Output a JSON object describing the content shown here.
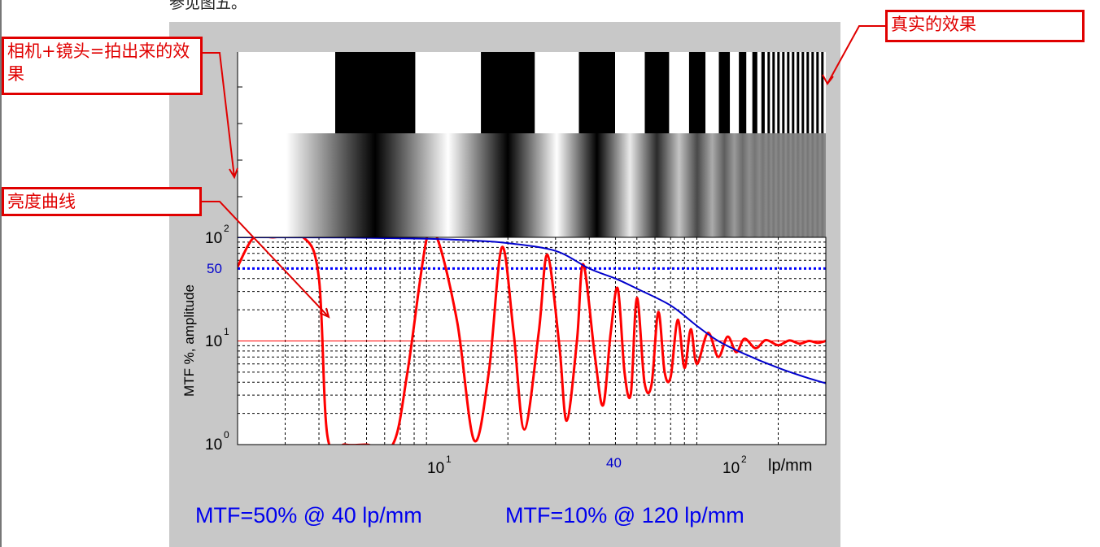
{
  "page": {
    "top_text": "参见图五。"
  },
  "callouts": {
    "real_effect": "真实的效果",
    "camera_lens": "相机+镜头=拍出来的效果",
    "brightness_curve": "亮度曲线"
  },
  "summary": {
    "mtf50": "MTF=50% @ 40 lp/mm",
    "mtf10": "MTF=10% @ 120 lp/mm"
  },
  "chart_data": {
    "type": "line",
    "x_scale": "log",
    "y_scale": "log",
    "xlim": [
      2,
      300
    ],
    "ylim": [
      1,
      100
    ],
    "ylabel": "MTF %, amplitude",
    "xlabel": "lp/mm",
    "x_ticks": [
      {
        "value": 10,
        "base": "10",
        "exp": "1"
      },
      {
        "value": 100,
        "base": "10",
        "exp": "2"
      }
    ],
    "y_ticks": [
      {
        "value": 1,
        "base": "10",
        "exp": "0"
      },
      {
        "value": 10,
        "base": "10",
        "exp": "1"
      },
      {
        "value": 100,
        "base": "10",
        "exp": "2"
      }
    ],
    "marker_labels": {
      "x": "40",
      "y": "50"
    },
    "reference_lines": [
      {
        "axis": "y",
        "value": 50,
        "style": "dotted",
        "color": "#0000ff"
      },
      {
        "axis": "y",
        "value": 10,
        "style": "solid",
        "color": "#ff0000"
      }
    ],
    "grid": true,
    "series": [
      {
        "color": "#0000cc",
        "x": [
          2,
          5,
          10,
          15,
          20,
          30,
          40,
          50,
          60,
          80,
          100,
          120,
          150,
          200,
          250,
          300
        ],
        "y": [
          100,
          99.5,
          97,
          93,
          88,
          74,
          50,
          40,
          32,
          22,
          14,
          10,
          7.5,
          5.5,
          4.5,
          3.9
        ]
      },
      {
        "color": "#ff0000",
        "x": [
          2,
          2.3,
          2.7,
          3.5,
          4,
          4.3,
          5,
          6,
          7.5,
          8.5,
          10,
          11,
          13,
          15,
          17,
          19,
          21,
          23,
          26,
          28,
          31,
          33,
          36,
          38,
          42,
          45,
          48,
          51,
          54,
          57,
          60,
          64,
          68,
          72,
          76,
          80,
          85,
          90,
          95,
          100,
          110,
          120,
          130,
          140,
          150,
          165,
          180,
          200,
          220,
          240,
          260,
          280,
          300
        ],
        "y": [
          52,
          100,
          100,
          100,
          40,
          1.2,
          1,
          1,
          1,
          5,
          95,
          95,
          15,
          1.1,
          5,
          80,
          12,
          1.4,
          12,
          68,
          9,
          1.7,
          10,
          55,
          7,
          2.4,
          12,
          32,
          5,
          3.1,
          26,
          4,
          3.8,
          19,
          5,
          4.5,
          16,
          5.5,
          13,
          6,
          12,
          7,
          11,
          7.8,
          10.5,
          8.5,
          10.2,
          9.1,
          10.1,
          9.4,
          10,
          9.6,
          10
        ]
      }
    ]
  }
}
